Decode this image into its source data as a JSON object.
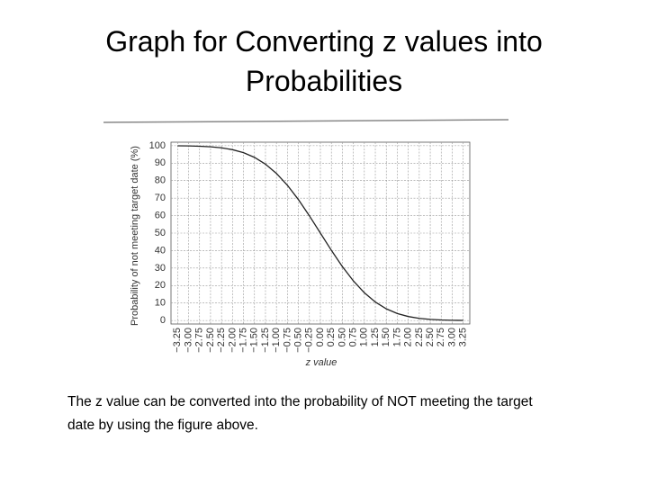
{
  "chart_data": {
    "type": "line",
    "title": "Graph for Converting  z  values into Probabilities",
    "caption": "The z value can be converted into the probability of  NOT meeting the target date by using the figure above.",
    "x_label": "z value",
    "y_label": "Probability of not meeting target date (%)",
    "x": [
      -3.25,
      -3,
      -2.75,
      -2.5,
      -2.25,
      -2,
      -1.75,
      -1.5,
      -1.25,
      -1,
      -0.75,
      -0.5,
      -0.25,
      0,
      0.25,
      0.5,
      0.75,
      1,
      1.25,
      1.5,
      1.75,
      2,
      2.25,
      2.5,
      2.75,
      3,
      3.25
    ],
    "series": [
      {
        "color": "#222222",
        "values": [
          99.94,
          99.87,
          99.7,
          99.38,
          98.78,
          97.72,
          95.99,
          93.32,
          89.44,
          84.13,
          77.34,
          69.15,
          59.87,
          50,
          40.13,
          30.85,
          22.66,
          15.87,
          10.56,
          6.68,
          4.01,
          2.28,
          1.22,
          0.62,
          0.3,
          0.13,
          0.06
        ]
      }
    ],
    "xlim": [
      -3.4,
      3.4
    ],
    "ylim": [
      -2,
      102
    ],
    "xticks": [
      {
        "value": -3.25,
        "label": "−3.25"
      },
      {
        "value": -3,
        "label": "−3.00"
      },
      {
        "value": -2.75,
        "label": "−2.75"
      },
      {
        "value": -2.5,
        "label": "−2.50"
      },
      {
        "value": -2.25,
        "label": "−2.25"
      },
      {
        "value": -2,
        "label": "−2.00"
      },
      {
        "value": -1.75,
        "label": "−1.75"
      },
      {
        "value": -1.5,
        "label": "−1.50"
      },
      {
        "value": -1.25,
        "label": "−1.25"
      },
      {
        "value": -1,
        "label": "−1.00"
      },
      {
        "value": -0.75,
        "label": "−0.75"
      },
      {
        "value": -0.5,
        "label": "−0.50"
      },
      {
        "value": -0.25,
        "label": "−0.25"
      },
      {
        "value": 0,
        "label": "0.00"
      },
      {
        "value": 0.25,
        "label": "0.25"
      },
      {
        "value": 0.5,
        "label": "0.50"
      },
      {
        "value": 0.75,
        "label": "0.75"
      },
      {
        "value": 1,
        "label": "1.00"
      },
      {
        "value": 1.25,
        "label": "1.25"
      },
      {
        "value": 1.5,
        "label": "1.50"
      },
      {
        "value": 1.75,
        "label": "1.75"
      },
      {
        "value": 2,
        "label": "2.00"
      },
      {
        "value": 2.25,
        "label": "2.25"
      },
      {
        "value": 2.5,
        "label": "2.50"
      },
      {
        "value": 2.75,
        "label": "2.75"
      },
      {
        "value": 3,
        "label": "3.00"
      },
      {
        "value": 3.25,
        "label": "3.25"
      }
    ],
    "yticks": [
      0,
      10,
      20,
      30,
      40,
      50,
      60,
      70,
      80,
      90,
      100
    ],
    "grid": true
  }
}
